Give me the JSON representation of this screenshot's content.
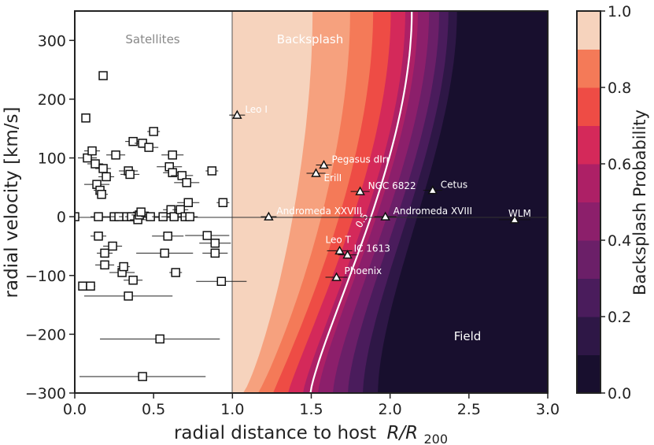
{
  "chart_data": {
    "type": "scatter",
    "xlabel": "radial distance to host",
    "xlabel_math": "R/R",
    "xlabel_sub": "200",
    "ylabel": "radial velocity [km/s]",
    "colorbar_label": "Backsplash Probability",
    "xlim": [
      0.0,
      3.0
    ],
    "ylim": [
      -300,
      350
    ],
    "xticks": [
      "0.0",
      "0.5",
      "1.0",
      "1.5",
      "2.0",
      "2.5",
      "3.0"
    ],
    "yticks": [
      "−300",
      "−200",
      "−100",
      "0",
      "100",
      "200",
      "300"
    ],
    "colorbar_ticks": [
      "0.0",
      "0.2",
      "0.4",
      "0.6",
      "0.8",
      "1.0"
    ],
    "region_labels": {
      "satellites": "Satellites",
      "backsplash": "Backsplash",
      "field": "Field"
    },
    "contour_label": "0.5",
    "contour_levels": [
      0.0,
      0.1,
      0.2,
      0.3,
      0.4,
      0.5,
      0.6,
      0.7,
      0.8,
      0.9,
      1.0
    ],
    "contour_colors": [
      "#180f2e",
      "#2e1746",
      "#4a1c5c",
      "#6b1f68",
      "#8c1f6b",
      "#ad2066",
      "#d4295a",
      "#ee4c45",
      "#f47a58",
      "#f6a17e",
      "#f6d3bd"
    ],
    "satellites": [
      {
        "x": 0.0,
        "y": 0,
        "xerr": 0.0
      },
      {
        "x": 0.05,
        "y": -118,
        "xerr": 0.0
      },
      {
        "x": 0.07,
        "y": 168,
        "xerr": 0.0
      },
      {
        "x": 0.08,
        "y": 100,
        "xerr": 0.06
      },
      {
        "x": 0.1,
        "y": -118,
        "xerr": 0.03
      },
      {
        "x": 0.11,
        "y": 112,
        "xerr": 0.05
      },
      {
        "x": 0.13,
        "y": 90,
        "xerr": 0.05
      },
      {
        "x": 0.14,
        "y": 55,
        "xerr": 0.08
      },
      {
        "x": 0.15,
        "y": 0,
        "xerr": 0.05
      },
      {
        "x": 0.15,
        "y": -33,
        "xerr": 0.05
      },
      {
        "x": 0.16,
        "y": 45,
        "xerr": 0.04
      },
      {
        "x": 0.17,
        "y": 38,
        "xerr": 0.04
      },
      {
        "x": 0.18,
        "y": 82,
        "xerr": 0.05
      },
      {
        "x": 0.18,
        "y": 240,
        "xerr": 0.0
      },
      {
        "x": 0.19,
        "y": -62,
        "xerr": 0.05
      },
      {
        "x": 0.19,
        "y": -82,
        "xerr": 0.06
      },
      {
        "x": 0.2,
        "y": 68,
        "xerr": 0.05
      },
      {
        "x": 0.24,
        "y": -50,
        "xerr": 0.06
      },
      {
        "x": 0.25,
        "y": 0,
        "xerr": 0.05
      },
      {
        "x": 0.26,
        "y": 105,
        "xerr": 0.06
      },
      {
        "x": 0.28,
        "y": 0,
        "xerr": 0.05
      },
      {
        "x": 0.3,
        "y": -95,
        "xerr": 0.08
      },
      {
        "x": 0.31,
        "y": -85,
        "xerr": 0.04
      },
      {
        "x": 0.33,
        "y": 0,
        "xerr": 0.05
      },
      {
        "x": 0.34,
        "y": 78,
        "xerr": 0.06
      },
      {
        "x": 0.34,
        "y": -135,
        "xerr": 0.28
      },
      {
        "x": 0.35,
        "y": 72,
        "xerr": 0.06
      },
      {
        "x": 0.36,
        "y": 0,
        "xerr": 0.04
      },
      {
        "x": 0.37,
        "y": 128,
        "xerr": 0.05
      },
      {
        "x": 0.37,
        "y": -108,
        "xerr": 0.06
      },
      {
        "x": 0.4,
        "y": -5,
        "xerr": 0.05
      },
      {
        "x": 0.41,
        "y": 3,
        "xerr": 0.05
      },
      {
        "x": 0.42,
        "y": 8,
        "xerr": 0.05
      },
      {
        "x": 0.43,
        "y": 125,
        "xerr": 0.05
      },
      {
        "x": 0.43,
        "y": -272,
        "xerr": 0.4
      },
      {
        "x": 0.47,
        "y": 118,
        "xerr": 0.06
      },
      {
        "x": 0.48,
        "y": 0,
        "xerr": 0.06
      },
      {
        "x": 0.5,
        "y": 145,
        "xerr": 0.04
      },
      {
        "x": 0.54,
        "y": -208,
        "xerr": 0.38
      },
      {
        "x": 0.56,
        "y": 0,
        "xerr": 0.07
      },
      {
        "x": 0.57,
        "y": -62,
        "xerr": 0.18
      },
      {
        "x": 0.59,
        "y": -33,
        "xerr": 0.1
      },
      {
        "x": 0.6,
        "y": 85,
        "xerr": 0.08
      },
      {
        "x": 0.61,
        "y": 12,
        "xerr": 0.05
      },
      {
        "x": 0.62,
        "y": 105,
        "xerr": 0.07
      },
      {
        "x": 0.62,
        "y": 75,
        "xerr": 0.06
      },
      {
        "x": 0.63,
        "y": 0,
        "xerr": 0.08
      },
      {
        "x": 0.64,
        "y": -95,
        "xerr": 0.04
      },
      {
        "x": 0.67,
        "y": 12,
        "xerr": 0.05
      },
      {
        "x": 0.68,
        "y": 70,
        "xerr": 0.07
      },
      {
        "x": 0.7,
        "y": 0,
        "xerr": 0.05
      },
      {
        "x": 0.71,
        "y": 58,
        "xerr": 0.08
      },
      {
        "x": 0.72,
        "y": 24,
        "xerr": 0.07
      },
      {
        "x": 0.73,
        "y": 0,
        "xerr": 0.05
      },
      {
        "x": 0.84,
        "y": -32,
        "xerr": 0.14
      },
      {
        "x": 0.87,
        "y": 78,
        "xerr": 0.04
      },
      {
        "x": 0.89,
        "y": -45,
        "xerr": 0.1
      },
      {
        "x": 0.89,
        "y": -62,
        "xerr": 0.08
      },
      {
        "x": 0.93,
        "y": -110,
        "xerr": 0.16
      },
      {
        "x": 0.94,
        "y": 24,
        "xerr": 0.04
      }
    ],
    "galaxies": [
      {
        "name": "Leo I",
        "x": 1.03,
        "y": 173,
        "xerr": 0.05
      },
      {
        "name": "Andromeda XXVIII",
        "x": 1.23,
        "y": 0,
        "xerr": 0.05
      },
      {
        "name": "Pegasus dIrr",
        "x": 1.58,
        "y": 88,
        "xerr": 0.05
      },
      {
        "name": "ErilI",
        "x": 1.53,
        "y": 74,
        "xerr": 0.06
      },
      {
        "name": "NGC 6822",
        "x": 1.81,
        "y": 43,
        "xerr": 0.06
      },
      {
        "name": "Andromeda XVIII",
        "x": 1.97,
        "y": 0,
        "xerr": 0.07
      },
      {
        "name": "Cetus",
        "x": 2.27,
        "y": 45,
        "xerr": 0.06
      },
      {
        "name": "WLM",
        "x": 2.79,
        "y": -5,
        "xerr": 0.1
      },
      {
        "name": "Leo T",
        "x": 1.68,
        "y": -58,
        "xerr": 0.08
      },
      {
        "name": "IC 1613",
        "x": 1.73,
        "y": -65,
        "xerr": 0.06
      },
      {
        "name": "Phoenix",
        "x": 1.66,
        "y": -103,
        "xerr": 0.07
      }
    ]
  }
}
